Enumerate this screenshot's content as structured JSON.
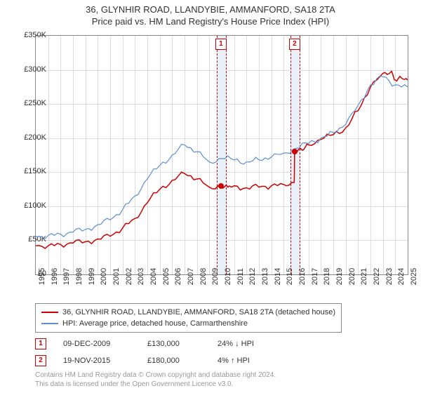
{
  "header": {
    "title": "36, GLYNHIR ROAD, LLANDYBIE, AMMANFORD, SA18 2TA",
    "subtitle": "Price paid vs. HM Land Registry's House Price Index (HPI)"
  },
  "chart": {
    "type": "line",
    "background_color": "#ffffff",
    "grid_color": "#dddddd",
    "border_color": "#888888",
    "y_axis": {
      "min": 0,
      "max": 350000,
      "step": 50000,
      "labels": [
        "£0",
        "£50K",
        "£100K",
        "£150K",
        "£200K",
        "£250K",
        "£300K",
        "£350K"
      ]
    },
    "x_axis": {
      "min": 1995,
      "max": 2025,
      "labels": [
        "1995",
        "1996",
        "1997",
        "1998",
        "1999",
        "2000",
        "2001",
        "2002",
        "2003",
        "2004",
        "2005",
        "2006",
        "2007",
        "2008",
        "2009",
        "2010",
        "2011",
        "2012",
        "2013",
        "2014",
        "2015",
        "2016",
        "2017",
        "2018",
        "2019",
        "2020",
        "2021",
        "2022",
        "2023",
        "2024",
        "2025"
      ]
    },
    "series": [
      {
        "id": "price_paid",
        "label": "36, GLYNHIR ROAD, LLANDYBIE, AMMANFORD, SA18 2TA (detached house)",
        "color": "#cc0000",
        "line_width": 1.5,
        "data": [
          [
            1995,
            42000
          ],
          [
            1996,
            42000
          ],
          [
            1997,
            44000
          ],
          [
            1998,
            46000
          ],
          [
            1999,
            48000
          ],
          [
            2000,
            52000
          ],
          [
            2001,
            56000
          ],
          [
            2002,
            68000
          ],
          [
            2003,
            82000
          ],
          [
            2004,
            105000
          ],
          [
            2005,
            125000
          ],
          [
            2006,
            138000
          ],
          [
            2007,
            148000
          ],
          [
            2008,
            140000
          ],
          [
            2009,
            128000
          ],
          [
            2009.94,
            130000
          ],
          [
            2010.5,
            128000
          ],
          [
            2011,
            130000
          ],
          [
            2012,
            127000
          ],
          [
            2013,
            128000
          ],
          [
            2014,
            130000
          ],
          [
            2015,
            132000
          ],
          [
            2015.85,
            135000
          ],
          [
            2015.88,
            180000
          ],
          [
            2016.5,
            182000
          ],
          [
            2017,
            190000
          ],
          [
            2018,
            198000
          ],
          [
            2019,
            205000
          ],
          [
            2020,
            215000
          ],
          [
            2021,
            240000
          ],
          [
            2022,
            275000
          ],
          [
            2023,
            295000
          ],
          [
            2023.7,
            298000
          ],
          [
            2024,
            285000
          ],
          [
            2024.5,
            288000
          ],
          [
            2025,
            285000
          ]
        ]
      },
      {
        "id": "hpi",
        "label": "HPI: Average price, detached house, Carmarthenshire",
        "color": "#5b8fd6",
        "line_width": 1.2,
        "data": [
          [
            1995,
            55000
          ],
          [
            1996,
            57000
          ],
          [
            1997,
            59000
          ],
          [
            1998,
            62000
          ],
          [
            1999,
            66000
          ],
          [
            2000,
            73000
          ],
          [
            2001,
            80000
          ],
          [
            2002,
            95000
          ],
          [
            2003,
            115000
          ],
          [
            2004,
            140000
          ],
          [
            2005,
            160000
          ],
          [
            2006,
            175000
          ],
          [
            2007,
            190000
          ],
          [
            2008,
            180000
          ],
          [
            2009,
            165000
          ],
          [
            2010,
            170000
          ],
          [
            2011,
            168000
          ],
          [
            2012,
            165000
          ],
          [
            2013,
            168000
          ],
          [
            2014,
            172000
          ],
          [
            2015,
            178000
          ],
          [
            2016,
            185000
          ],
          [
            2017,
            192000
          ],
          [
            2018,
            200000
          ],
          [
            2019,
            208000
          ],
          [
            2020,
            220000
          ],
          [
            2021,
            248000
          ],
          [
            2022,
            278000
          ],
          [
            2023,
            290000
          ],
          [
            2024,
            278000
          ],
          [
            2025,
            275000
          ]
        ]
      }
    ],
    "markers": [
      {
        "id": "1",
        "x": 2009.94,
        "y": 130000,
        "band_width_years": 0.7
      },
      {
        "id": "2",
        "x": 2015.88,
        "y": 180000,
        "band_width_years": 0.7
      }
    ]
  },
  "sales": [
    {
      "marker": "1",
      "date": "09-DEC-2009",
      "price": "£130,000",
      "diff": "24% ↓ HPI"
    },
    {
      "marker": "2",
      "date": "19-NOV-2015",
      "price": "£180,000",
      "diff": "4% ↑ HPI"
    }
  ],
  "footer": {
    "line1": "Contains HM Land Registry data © Crown copyright and database right 2024.",
    "line2": "This data is licensed under the Open Government Licence v3.0."
  },
  "label_fontsize": 11,
  "title_fontsize": 13
}
